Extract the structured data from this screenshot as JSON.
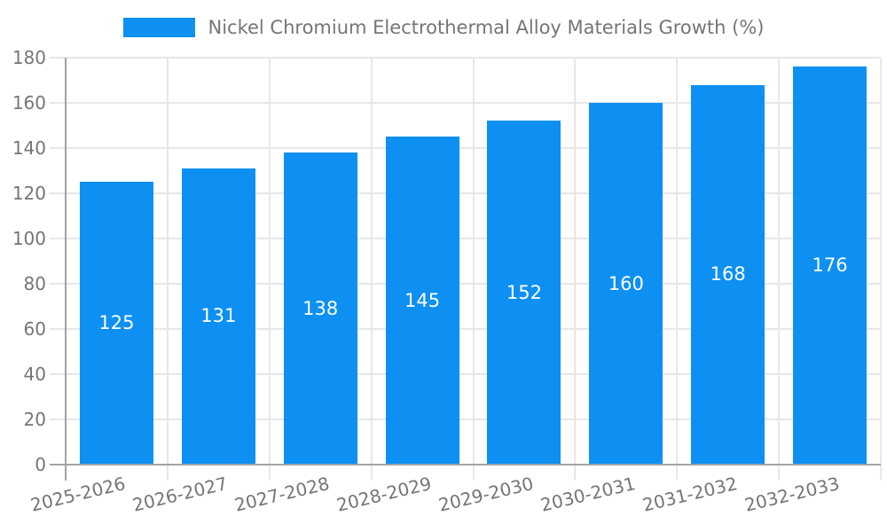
{
  "chart_data": {
    "type": "bar",
    "title": "Nickel Chromium Electrothermal Alloy Materials Growth (%)",
    "categories": [
      "2025-2026",
      "2026-2027",
      "2027-2028",
      "2028-2029",
      "2029-2030",
      "2030-2031",
      "2031-2032",
      "2032-2033"
    ],
    "values": [
      125,
      131,
      138,
      145,
      152,
      160,
      168,
      176
    ],
    "xlabel": "",
    "ylabel": "",
    "ylim": [
      0,
      180
    ],
    "ytick_step": 20,
    "y_tick_labels": [
      "0",
      "20",
      "40",
      "60",
      "80",
      "100",
      "120",
      "140",
      "160",
      "180"
    ],
    "grid": true,
    "legend_position": "top-center",
    "bar_color": "#0d90f2",
    "value_label_color": "#ffffff",
    "axis_text_color": "#757575"
  },
  "legend": {
    "swatch_icon": "legend-color-swatch",
    "label": "Nickel Chromium Electrothermal Alloy Materials Growth (%)"
  }
}
